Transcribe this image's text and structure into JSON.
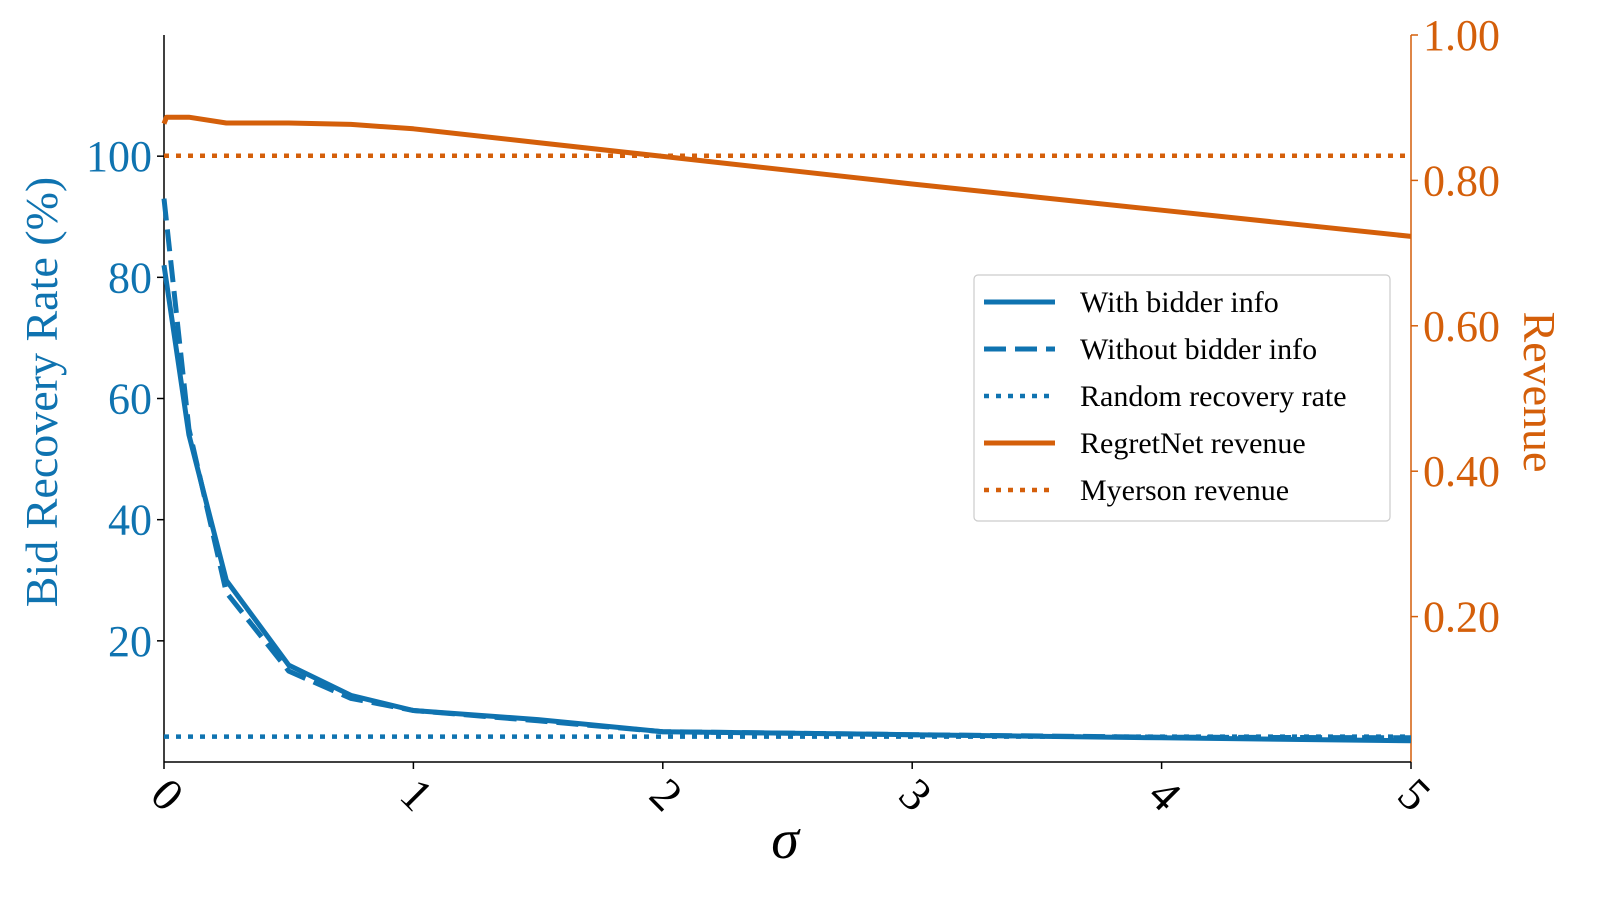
{
  "chart_data": {
    "type": "line",
    "xlabel": "σ",
    "ylabel_left": "Bid Recovery Rate (%)",
    "ylabel_right": "Revenue",
    "xlim": [
      0,
      5
    ],
    "ylim_left": [
      0,
      120
    ],
    "ylim_right": [
      0,
      1.0
    ],
    "x_ticks": [
      0,
      1,
      2,
      3,
      4,
      5
    ],
    "x_tick_labels": [
      "0",
      "1",
      "2",
      "3",
      "4",
      "5"
    ],
    "y_left_ticks": [
      20,
      40,
      60,
      80,
      100
    ],
    "y_left_tick_labels": [
      "20",
      "40",
      "60",
      "80",
      "100"
    ],
    "y_right_ticks": [
      0.2,
      0.4,
      0.6,
      0.8,
      1.0
    ],
    "y_right_tick_labels": [
      "0.20",
      "0.40",
      "0.60",
      "0.80",
      "1.00"
    ],
    "legend_position": "center-right",
    "grid": false,
    "colors": {
      "left_axis": "#0f73b0",
      "right_axis": "#d45f0a",
      "blue": "#0f73b0",
      "orange": "#d45f0a"
    },
    "series": [
      {
        "name": "With bidder info",
        "axis": "left",
        "style": "solid",
        "color": "#0f73b0",
        "x": [
          0,
          0.1,
          0.25,
          0.5,
          0.75,
          1.0,
          1.5,
          2.0,
          3.0,
          4.0,
          5.0
        ],
        "y": [
          82,
          54,
          30,
          16,
          11,
          8.5,
          7,
          5,
          4.5,
          4,
          3.5
        ]
      },
      {
        "name": "Without bidder info",
        "axis": "left",
        "style": "dashed",
        "color": "#0f73b0",
        "x": [
          0,
          0.1,
          0.25,
          0.5,
          0.75,
          1.0,
          1.5,
          2.0,
          3.0,
          4.0,
          5.0
        ],
        "y": [
          93,
          55,
          28,
          15,
          10.5,
          8.5,
          6.8,
          5,
          4.5,
          4.1,
          4
        ]
      },
      {
        "name": "Random recovery rate",
        "axis": "left",
        "style": "dotted",
        "color": "#0f73b0",
        "x": [
          0,
          5
        ],
        "y": [
          4.2,
          4.2
        ]
      },
      {
        "name": "RegretNet revenue",
        "axis": "right",
        "style": "solid",
        "color": "#d45f0a",
        "x": [
          0,
          0.01,
          0.1,
          0.25,
          0.5,
          0.75,
          1.0,
          1.5,
          2.0,
          2.5,
          3.0,
          3.5,
          4.0,
          4.5,
          5.0
        ],
        "y": [
          0.878,
          0.887,
          0.887,
          0.879,
          0.879,
          0.877,
          0.871,
          0.852,
          0.833,
          0.814,
          0.795,
          0.777,
          0.759,
          0.741,
          0.723
        ]
      },
      {
        "name": "Myerson revenue",
        "axis": "right",
        "style": "dotted",
        "color": "#d45f0a",
        "x": [
          0,
          5
        ],
        "y": [
          0.834,
          0.834
        ]
      }
    ]
  }
}
